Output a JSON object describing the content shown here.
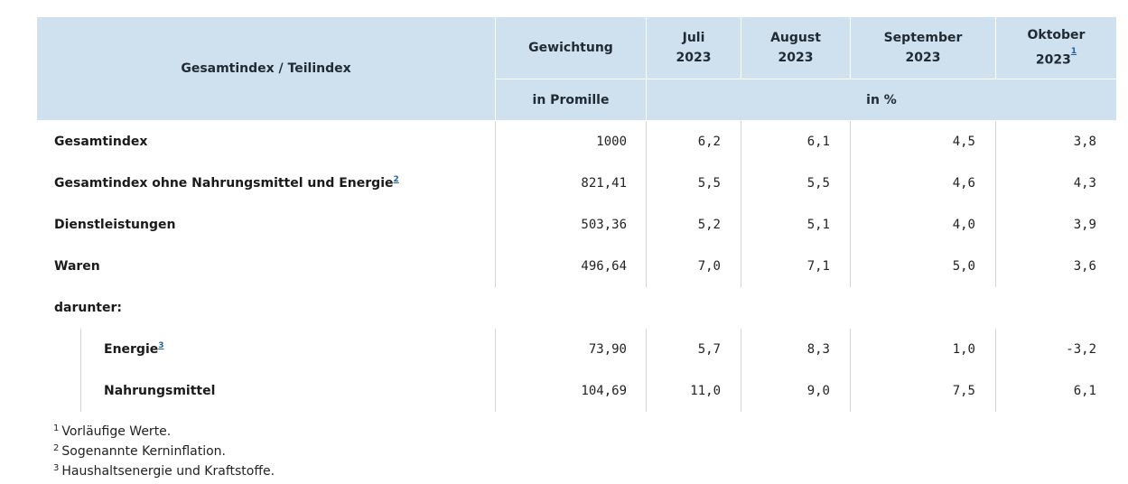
{
  "header": {
    "label_col": "Gesamtindex / Teilindex",
    "weight_col": "Gewichtung",
    "weight_unit": "in Promille",
    "months": [
      {
        "line1": "Juli",
        "line2": "2023",
        "fn": ""
      },
      {
        "line1": "August",
        "line2": "2023",
        "fn": ""
      },
      {
        "line1": "September",
        "line2": "2023",
        "fn": ""
      },
      {
        "line1": "Oktober",
        "line2": "2023",
        "fn": "1"
      }
    ],
    "percent_unit": "in %"
  },
  "rows": [
    {
      "label": "Gesamtindex",
      "fn": "",
      "weight": "1000",
      "values": [
        "6,2",
        "6,1",
        "4,5",
        "3,8"
      ]
    },
    {
      "label": "Gesamtindex ohne Nahrungsmittel und Energie",
      "fn": "2",
      "weight": "821,41",
      "values": [
        "5,5",
        "5,5",
        "4,6",
        "4,3"
      ]
    },
    {
      "label": "Dienstleistungen",
      "fn": "",
      "weight": "503,36",
      "values": [
        "5,2",
        "5,1",
        "4,0",
        "3,9"
      ]
    },
    {
      "label": "Waren",
      "fn": "",
      "weight": "496,64",
      "values": [
        "7,0",
        "7,1",
        "5,0",
        "3,6"
      ]
    }
  ],
  "subheading": "darunter:",
  "subrows": [
    {
      "label": "Energie",
      "fn": "3",
      "weight": "73,90",
      "values": [
        "5,7",
        "8,3",
        "1,0",
        "-3,2"
      ]
    },
    {
      "label": "Nahrungsmittel",
      "fn": "",
      "weight": "104,69",
      "values": [
        "11,0",
        "9,0",
        "7,5",
        "6,1"
      ]
    }
  ],
  "footnotes": [
    {
      "num": "1",
      "text": "Vorläufige Werte."
    },
    {
      "num": "2",
      "text": "Sogenannte Kerninflation."
    },
    {
      "num": "3",
      "text": "Haushaltsenergie und Kraftstoffe."
    }
  ]
}
